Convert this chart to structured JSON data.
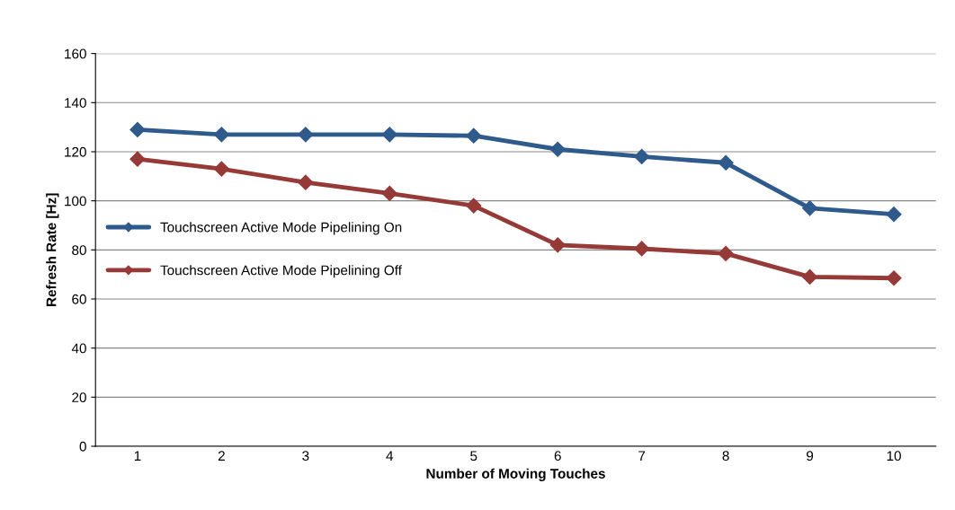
{
  "chart_data": {
    "type": "line",
    "xlabel": "Number of Moving Touches",
    "ylabel": "Refresh Rate [Hz]",
    "categories": [
      "1",
      "2",
      "3",
      "4",
      "5",
      "6",
      "7",
      "8",
      "9",
      "10"
    ],
    "series": [
      {
        "name": "Touchscreen Active Mode Pipelining On",
        "color": "#2f5a8c",
        "values": [
          129,
          127,
          127,
          127,
          126.5,
          121,
          118,
          115.5,
          97,
          94.5
        ]
      },
      {
        "name": "Touchscreen Active Mode Pipelining Off",
        "color": "#963a38",
        "values": [
          117,
          113,
          107.5,
          103,
          98,
          82,
          80.5,
          78.5,
          69,
          68.5
        ]
      }
    ],
    "ylim": [
      0,
      160
    ],
    "yticks": [
      0,
      20,
      40,
      60,
      80,
      100,
      120,
      140,
      160
    ],
    "grid": "y",
    "legend": "left",
    "marker": "diamond",
    "line_style": "solid"
  }
}
